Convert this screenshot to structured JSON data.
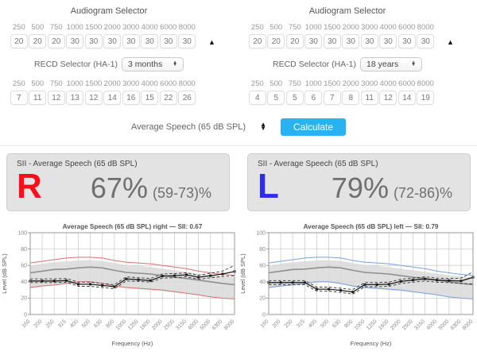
{
  "colors": {
    "accent": "#29b2f2",
    "right_ear": "#fb0d1b",
    "left_ear": "#2d2df0",
    "env_right": "#d9736f",
    "env_left": "#7aa3d9"
  },
  "panels": [
    {
      "title": "Audiogram Selector",
      "frequencies": [
        "250",
        "500",
        "750",
        "1000",
        "1500",
        "2000",
        "3000",
        "4000",
        "6000",
        "8000"
      ],
      "audiogram_values": [
        "20",
        "20",
        "20",
        "30",
        "30",
        "30",
        "30",
        "30",
        "30",
        "30"
      ],
      "collapse_icon": "▲",
      "recd_label": "RECD Selector (HA-1)",
      "recd_selected": "3 months",
      "recd_frequencies": [
        "250",
        "500",
        "750",
        "1000",
        "1500",
        "2000",
        "3000",
        "4000",
        "6000",
        "8000"
      ],
      "recd_values": [
        "7",
        "11",
        "12",
        "13",
        "12",
        "14",
        "16",
        "15",
        "22",
        "26"
      ]
    },
    {
      "title": "Audiogram Selector",
      "frequencies": [
        "250",
        "500",
        "750",
        "1000",
        "1500",
        "2000",
        "3000",
        "4000",
        "6000",
        "8000"
      ],
      "audiogram_values": [
        "20",
        "20",
        "20",
        "30",
        "30",
        "30",
        "30",
        "30",
        "30",
        "30"
      ],
      "collapse_icon": "▲",
      "recd_label": "RECD Selector (HA-1)",
      "recd_selected": "18 years",
      "recd_frequencies": [
        "250",
        "500",
        "750",
        "1000",
        "1500",
        "2000",
        "3000",
        "4000",
        "6000",
        "8000"
      ],
      "recd_values": [
        "4",
        "5",
        "5",
        "6",
        "7",
        "8",
        "11",
        "12",
        "14",
        "19"
      ]
    }
  ],
  "calc_row": {
    "label": "Average Speech (65 dB SPL)",
    "button": "Calculate"
  },
  "sii_panels": [
    {
      "title": "SII - Average Speech (65 dB SPL)",
      "ear": "R",
      "ear_color": "#fb0d1b",
      "percent": "67%",
      "range": "(59-73)%"
    },
    {
      "title": "SII - Average Speech (65 dB SPL)",
      "ear": "L",
      "ear_color": "#2d2df0",
      "percent": "79%",
      "range": "(72-86)%"
    }
  ],
  "chart_data": [
    {
      "type": "line",
      "title": "Average Speech (65 dB SPL) right — SII: 0.67",
      "xlabel": "Frequency (Hz)",
      "ylabel": "Level (dB SPL)",
      "ylim": [
        0,
        100
      ],
      "yticks": [
        0,
        20,
        40,
        60,
        80,
        100
      ],
      "grid": true,
      "legend": false,
      "env_color": "#d9736f",
      "categories": [
        "160",
        "200",
        "250",
        "315",
        "400",
        "500",
        "630",
        "800",
        "1000",
        "1250",
        "1600",
        "2000",
        "2500",
        "3150",
        "4000",
        "5000",
        "6300",
        "8000"
      ],
      "series": [
        {
          "name": "speech_peaks",
          "values": [
            63,
            65,
            67,
            69,
            70,
            70,
            69,
            66,
            64,
            63,
            62,
            60,
            58,
            56,
            53,
            51,
            49,
            48
          ]
        },
        {
          "name": "speech_valleys",
          "values": [
            33,
            35,
            36,
            38,
            40,
            40,
            38,
            35,
            33,
            32,
            31,
            30,
            28,
            26,
            24,
            21.5,
            20,
            19
          ]
        },
        {
          "name": "band_top",
          "values": [
            60,
            62,
            64,
            65,
            66,
            66.5,
            65.5,
            63,
            60.5,
            59.5,
            58,
            56,
            54,
            52,
            50,
            48,
            46.5,
            45.5
          ]
        },
        {
          "name": "band_bottom",
          "values": [
            32,
            34,
            35.5,
            37,
            39,
            39,
            37,
            34,
            32,
            31,
            30,
            28.5,
            27,
            25.5,
            23.5,
            21,
            19.5,
            18.5
          ]
        },
        {
          "name": "ltass",
          "values": [
            51,
            53,
            55,
            55.5,
            57,
            58,
            57,
            54,
            51.5,
            50.5,
            49.5,
            47.5,
            45.5,
            44,
            42,
            40,
            38,
            36.5
          ]
        },
        {
          "name": "threshold_upper",
          "values": [
            43.5,
            43.5,
            43.5,
            44,
            39.5,
            39.5,
            38,
            36.5,
            46,
            45,
            44,
            49.5,
            50,
            51,
            48,
            50.5,
            53,
            60
          ]
        },
        {
          "name": "threshold_lower",
          "values": [
            39,
            39,
            39,
            39.5,
            34.5,
            34.5,
            33,
            31.5,
            41,
            40.5,
            39.5,
            44.5,
            45,
            46,
            43,
            45,
            46.5,
            47.5
          ]
        },
        {
          "name": "threshold",
          "values": [
            41,
            41,
            41,
            41.5,
            37,
            37,
            35.5,
            34,
            43.5,
            42.5,
            41.5,
            47,
            47.5,
            48.5,
            45.5,
            47.5,
            49.5,
            52.5
          ]
        }
      ]
    },
    {
      "type": "line",
      "title": "Average Speech (65 dB SPL) left — SII: 0.79",
      "xlabel": "Frequency (Hz)",
      "ylabel": "Level (dB SPL)",
      "ylim": [
        0,
        100
      ],
      "yticks": [
        0,
        20,
        40,
        60,
        80,
        100
      ],
      "grid": true,
      "legend": false,
      "env_color": "#7aa3d9",
      "categories": [
        "160",
        "200",
        "250",
        "315",
        "400",
        "500",
        "630",
        "800",
        "1000",
        "1250",
        "1600",
        "2000",
        "2500",
        "3150",
        "4000",
        "5000",
        "6300",
        "8000"
      ],
      "series": [
        {
          "name": "speech_peaks",
          "values": [
            63,
            65,
            67,
            69,
            70,
            70,
            69,
            66,
            64,
            63,
            62,
            60,
            58,
            56,
            53,
            51,
            49,
            48
          ]
        },
        {
          "name": "speech_valleys",
          "values": [
            33,
            35,
            36,
            38,
            40,
            40,
            38,
            35,
            33,
            32,
            31,
            30,
            28,
            26,
            24,
            21.5,
            20,
            19
          ]
        },
        {
          "name": "band_top",
          "values": [
            60,
            62,
            64,
            65,
            66,
            66.5,
            65.5,
            63,
            60.5,
            59.5,
            58,
            56,
            54,
            52,
            50,
            48,
            46.5,
            45.5
          ]
        },
        {
          "name": "band_bottom",
          "values": [
            32,
            34,
            35.5,
            37,
            39,
            39,
            37,
            34,
            32,
            31,
            30,
            28.5,
            27,
            25.5,
            23.5,
            21,
            19.5,
            18.5
          ]
        },
        {
          "name": "ltass",
          "values": [
            51,
            53,
            55,
            55.5,
            57,
            58,
            57,
            54,
            51.5,
            50.5,
            49.5,
            47.5,
            45.5,
            44,
            42,
            40,
            38,
            36.5
          ]
        },
        {
          "name": "threshold_upper",
          "values": [
            41.5,
            41.5,
            41.5,
            41.5,
            33.5,
            33.5,
            32,
            30.5,
            39,
            39,
            39.5,
            43,
            44.5,
            46,
            44.5,
            44,
            44.5,
            52
          ]
        },
        {
          "name": "threshold_lower",
          "values": [
            36.5,
            36.5,
            36.5,
            36.5,
            28.5,
            28.5,
            27,
            25,
            34,
            34,
            34.5,
            38,
            39.5,
            41,
            39.5,
            39,
            38,
            37.5
          ]
        },
        {
          "name": "threshold",
          "values": [
            39,
            39,
            39,
            39,
            31,
            31,
            29.5,
            27.5,
            36.5,
            36.5,
            37,
            40.5,
            42,
            43.5,
            42,
            41.5,
            41,
            45.5
          ]
        }
      ]
    }
  ]
}
